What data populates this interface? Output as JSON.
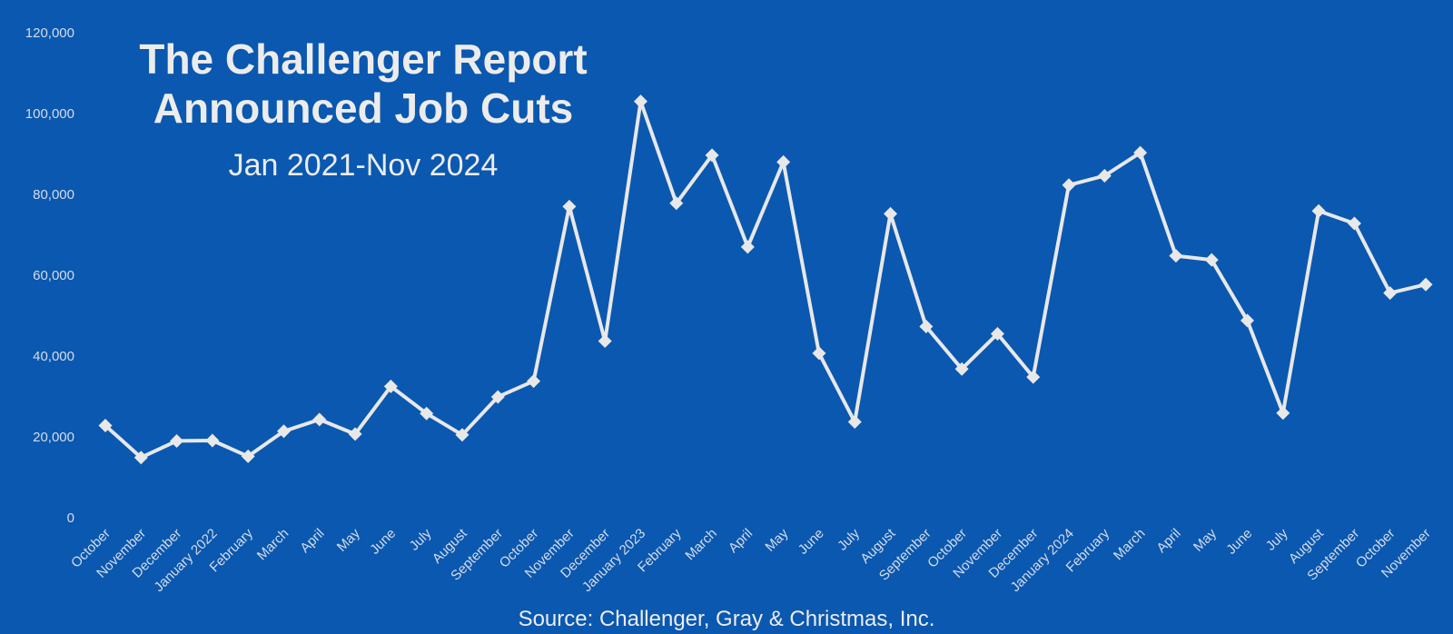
{
  "title_lines": [
    "The Challenger Report",
    "Announced Job Cuts"
  ],
  "subtitle": "Jan 2021-Nov 2024",
  "source": "Source: Challenger, Gray & Christmas, Inc.",
  "colors": {
    "background": "#0a58b0",
    "line": "#e8e8e8",
    "text": "#ececec",
    "tick_text": "#d6dce6"
  },
  "chart_data": {
    "type": "line",
    "title": "The Challenger Report Announced Job Cuts",
    "subtitle": "Jan 2021-Nov 2024",
    "xlabel": "",
    "ylabel": "",
    "ylim": [
      0,
      120000
    ],
    "yticks": [
      0,
      20000,
      40000,
      60000,
      80000,
      100000,
      120000
    ],
    "ytick_labels": [
      "0",
      "20,000",
      "40,000",
      "60,000",
      "80,000",
      "100,000",
      "120,000"
    ],
    "grid": false,
    "marker": "diamond",
    "categories": [
      "October",
      "November",
      "December",
      "January 2022",
      "February",
      "March",
      "April",
      "May",
      "June",
      "July",
      "August",
      "September",
      "October",
      "November",
      "December",
      "January 2023",
      "February",
      "March",
      "April",
      "May",
      "June",
      "July",
      "August",
      "September",
      "October",
      "November",
      "December",
      "January 2024",
      "February",
      "March",
      "April",
      "May",
      "June",
      "July",
      "August",
      "September",
      "October",
      "November"
    ],
    "series": [
      {
        "values": [
          22800,
          14900,
          19000,
          19100,
          15200,
          21400,
          24300,
          20700,
          32500,
          25800,
          20500,
          29900,
          33800,
          77000,
          43700,
          103000,
          77800,
          89700,
          67000,
          88000,
          40700,
          23700,
          75200,
          47300,
          36800,
          45500,
          34800,
          82300,
          84600,
          90300,
          64800,
          63800,
          48800,
          25900,
          75900,
          72800,
          55600,
          57700
        ]
      }
    ]
  }
}
